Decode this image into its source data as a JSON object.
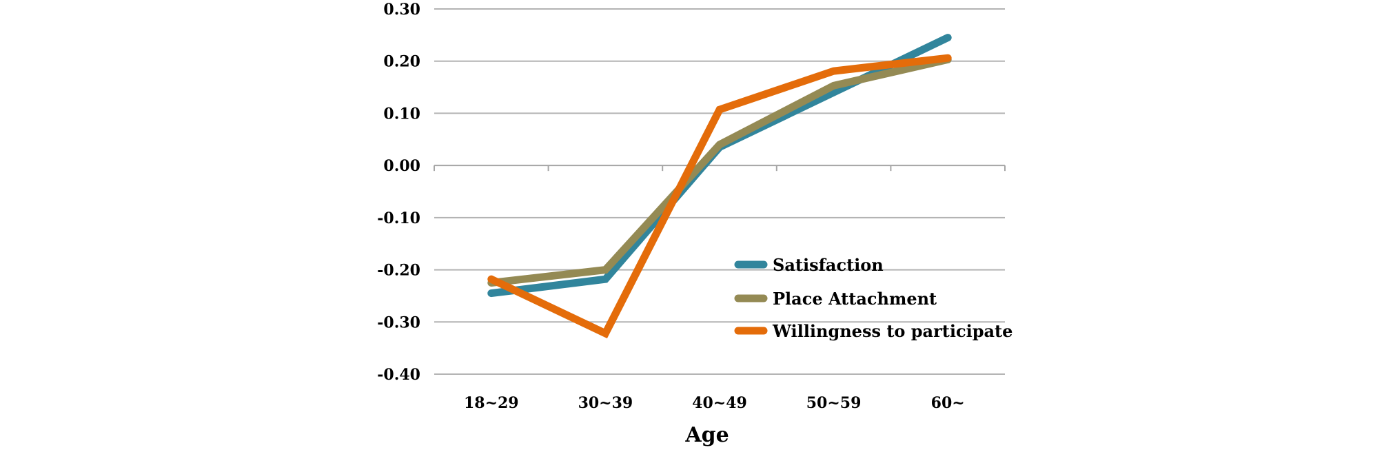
{
  "chart_data": {
    "type": "line",
    "title": "",
    "xlabel": "Age",
    "ylabel": "",
    "categories": [
      "18~29",
      "30~39",
      "40~49",
      "50~59",
      "60~"
    ],
    "ylim": [
      -0.4,
      0.3
    ],
    "yticks": [
      "0.30",
      "0.20",
      "0.10",
      "0.00",
      "-0.10",
      "-0.20",
      "-0.30",
      "-0.40"
    ],
    "ytick_values": [
      0.3,
      0.2,
      0.1,
      0.0,
      -0.1,
      -0.2,
      -0.3,
      -0.4
    ],
    "grid": true,
    "legend_placement": "bottom-right (inside plot)",
    "series": [
      {
        "name": "Satisfaction",
        "color": "#31859c",
        "values": [
          -0.245,
          -0.218,
          0.035,
          0.14,
          0.245
        ]
      },
      {
        "name": "Place Attachment",
        "color": "#948a54",
        "values": [
          -0.225,
          -0.2,
          0.04,
          0.153,
          0.203
        ]
      },
      {
        "name": "Willingness to participate",
        "color": "#e46c0a",
        "values": [
          -0.218,
          -0.322,
          0.107,
          0.181,
          0.206
        ]
      }
    ]
  }
}
